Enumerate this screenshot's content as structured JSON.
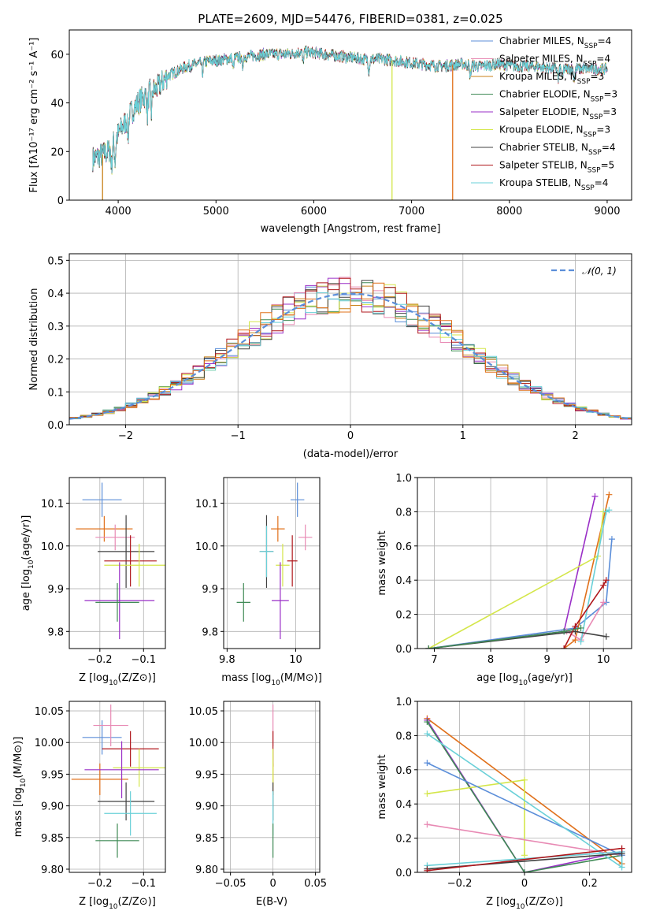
{
  "chart_data": [
    {
      "type": "line",
      "id": "spectrum",
      "title": "PLATE=2609, MJD=54476, FIBERID=0381, z=0.025",
      "xlabel": "wavelength [Angstrom, rest frame]",
      "ylabel": "Flux [fλ10⁻¹⁷ erg cm⁻² s⁻¹ A⁻¹]",
      "xlim": [
        3500,
        9250
      ],
      "ylim": [
        0,
        70
      ],
      "xticks": [
        4000,
        5000,
        6000,
        7000,
        8000,
        9000
      ],
      "yticks": [
        0,
        20,
        40,
        60
      ],
      "grid": false,
      "legend_placement": "top-right",
      "continuum": {
        "x": [
          3740,
          3800,
          3900,
          4000,
          4100,
          4200,
          4300,
          4400,
          4500,
          4700,
          4900,
          5100,
          5300,
          5500,
          5700,
          5900,
          6100,
          6300,
          6500,
          6700,
          6900,
          7100,
          7300,
          7500,
          7700,
          7900,
          8100,
          8300,
          8500,
          8700,
          8900,
          9000
        ],
        "y": [
          17,
          18,
          20,
          27,
          34,
          40,
          44,
          46,
          51,
          55,
          57,
          58,
          59,
          60,
          60,
          61,
          60,
          59,
          58,
          58,
          57,
          56,
          55,
          56,
          55,
          56,
          55,
          55,
          54,
          54,
          54,
          54
        ]
      },
      "series": [
        {
          "name": "Chabrier MILES, N_SSP=4",
          "label_main": "Chabrier MILES, N",
          "label_sub": "SSP",
          "label_tail": "=4",
          "color": "#5b8ed9"
        },
        {
          "name": "Salpeter MILES, N_SSP=4",
          "label_main": "Salpeter MILES, N",
          "label_sub": "SSP",
          "label_tail": "=4",
          "color": "#e88ab4"
        },
        {
          "name": "Kroupa MILES, N_SSP=3",
          "label_main": "Kroupa MILES, N",
          "label_sub": "SSP",
          "label_tail": "=3",
          "color": "#c8821a"
        },
        {
          "name": "Chabrier ELODIE, N_SSP=3",
          "label_main": "Chabrier ELODIE, N",
          "label_sub": "SSP",
          "label_tail": "=3",
          "color": "#3f8a55"
        },
        {
          "name": "Salpeter ELODIE, N_SSP=3",
          "label_main": "Salpeter ELODIE, N",
          "label_sub": "SSP",
          "label_tail": "=3",
          "color": "#9a2fc7"
        },
        {
          "name": "Kroupa ELODIE, N_SSP=3",
          "label_main": "Kroupa ELODIE, N",
          "label_sub": "SSP",
          "label_tail": "=3",
          "color": "#d4e64a"
        },
        {
          "name": "Chabrier STELIB, N_SSP=4",
          "label_main": "Chabrier STELIB, N",
          "label_sub": "SSP",
          "label_tail": "=4",
          "color": "#404040"
        },
        {
          "name": "Salpeter STELIB, N_SSP=5",
          "label_main": "Salpeter STELIB, N",
          "label_sub": "SSP",
          "label_tail": "=5",
          "color": "#b0171c"
        },
        {
          "name": "Kroupa STELIB, N_SSP=4",
          "label_main": "Kroupa STELIB, N",
          "label_sub": "SSP",
          "label_tail": "=4",
          "color": "#6ad0d8"
        }
      ],
      "dropouts": [
        {
          "x": 3840,
          "color": "#c8821a"
        },
        {
          "x": 6800,
          "color": "#d4e64a"
        },
        {
          "x": 7420,
          "color": "#e0701a"
        }
      ]
    },
    {
      "type": "bar",
      "id": "residuals",
      "xlabel": "(data-model)/error",
      "ylabel": "Normed distribution",
      "xlim": [
        -2.5,
        2.5
      ],
      "ylim": [
        0,
        0.52
      ],
      "xticks": [
        -2,
        -1,
        0,
        1,
        2
      ],
      "yticks": [
        0.0,
        0.1,
        0.2,
        0.3,
        0.4,
        0.5
      ],
      "grid": true,
      "bin_width": 0.1,
      "reference": {
        "name": "𝒩(0, 1)",
        "color": "#5b8ed9",
        "style": "dashed",
        "mean": 0,
        "sigma": 1
      },
      "legend_placement": "top-right"
    },
    {
      "type": "scatter",
      "id": "age_vs_Z",
      "xlabel_main": "Z [log",
      "xlabel_sub": "10",
      "xlabel_tail": "(Z/Z⊙)]",
      "ylabel_main": "age  [log",
      "ylabel_sub": "10",
      "ylabel_tail": "(age/yr)]",
      "xlim": [
        -0.27,
        -0.05
      ],
      "ylim": [
        9.76,
        10.16
      ],
      "xticks": [
        -0.2,
        -0.1
      ],
      "yticks": [
        9.8,
        9.9,
        10.0,
        10.1
      ],
      "grid": true,
      "points": [
        {
          "x": -0.195,
          "y": 10.108,
          "xerr": 0.045,
          "yerr": 0.04,
          "color": "#5b8ed9"
        },
        {
          "x": -0.19,
          "y": 10.04,
          "xerr": 0.065,
          "yerr": 0.03,
          "color": "#e0701a"
        },
        {
          "x": -0.165,
          "y": 10.02,
          "xerr": 0.045,
          "yerr": 0.03,
          "color": "#e88ab4"
        },
        {
          "x": -0.14,
          "y": 9.987,
          "xerr": 0.065,
          "yerr": 0.085,
          "color": "#404040"
        },
        {
          "x": -0.13,
          "y": 9.965,
          "xerr": 0.06,
          "yerr": 0.06,
          "color": "#b0171c"
        },
        {
          "x": -0.11,
          "y": 9.955,
          "xerr": 0.08,
          "yerr": 0.05,
          "color": "#d4e64a"
        },
        {
          "x": -0.155,
          "y": 9.872,
          "xerr": 0.08,
          "yerr": 0.09,
          "color": "#9a2fc7"
        },
        {
          "x": -0.16,
          "y": 9.868,
          "xerr": 0.05,
          "yerr": 0.045,
          "color": "#3f8a55"
        }
      ]
    },
    {
      "type": "scatter",
      "id": "age_vs_mass",
      "xlabel_main": "mass [log",
      "xlabel_sub": "10",
      "xlabel_tail": "(M/M⊙)]",
      "xlim": [
        9.79,
        10.07
      ],
      "ylim": [
        9.76,
        10.16
      ],
      "xticks": [
        9.8,
        10.0
      ],
      "yticks": [
        9.8,
        9.9,
        10.0,
        10.1
      ],
      "grid": true,
      "points": [
        {
          "x": 10.005,
          "y": 10.108,
          "xerr": 0.02,
          "yerr": 0.04,
          "color": "#5b8ed9"
        },
        {
          "x": 9.948,
          "y": 10.04,
          "xerr": 0.02,
          "yerr": 0.03,
          "color": "#e0701a"
        },
        {
          "x": 10.028,
          "y": 10.02,
          "xerr": 0.02,
          "yerr": 0.03,
          "color": "#e88ab4"
        },
        {
          "x": 9.915,
          "y": 9.987,
          "xerr": 0.02,
          "yerr": 0.085,
          "color": "#404040"
        },
        {
          "x": 9.99,
          "y": 9.965,
          "xerr": 0.015,
          "yerr": 0.06,
          "color": "#b0171c"
        },
        {
          "x": 9.962,
          "y": 9.955,
          "xerr": 0.02,
          "yerr": 0.05,
          "color": "#d4e64a"
        },
        {
          "x": 9.915,
          "y": 9.987,
          "xerr": 0.02,
          "yerr": 0.06,
          "color": "#6ad0d8"
        },
        {
          "x": 9.955,
          "y": 9.872,
          "xerr": 0.025,
          "yerr": 0.09,
          "color": "#9a2fc7"
        },
        {
          "x": 9.848,
          "y": 9.868,
          "xerr": 0.02,
          "yerr": 0.045,
          "color": "#3f8a55"
        }
      ]
    },
    {
      "type": "line",
      "id": "weight_vs_age",
      "xlabel_main": "age  [log",
      "xlabel_sub": "10",
      "xlabel_tail": "(age/yr)]",
      "ylabel": "mass weight",
      "xlim": [
        6.7,
        10.5
      ],
      "ylim": [
        0,
        1.0
      ],
      "xticks": [
        7,
        8,
        9,
        10
      ],
      "yticks": [
        0.0,
        0.2,
        0.4,
        0.6,
        0.8,
        1.0
      ],
      "grid": true,
      "series": [
        {
          "color": "#5b8ed9",
          "x": [
            6.9,
            9.5,
            10.05,
            10.15
          ],
          "y": [
            0.0,
            0.12,
            0.27,
            0.64
          ]
        },
        {
          "color": "#e0701a",
          "x": [
            9.3,
            9.5,
            10.1
          ],
          "y": [
            0.0,
            0.05,
            0.9
          ]
        },
        {
          "color": "#e88ab4",
          "x": [
            9.35,
            9.6,
            10.0
          ],
          "y": [
            0.1,
            0.05,
            0.27
          ]
        },
        {
          "color": "#9a2fc7",
          "x": [
            6.9,
            9.3,
            9.85
          ],
          "y": [
            0.0,
            0.1,
            0.89
          ]
        },
        {
          "color": "#d4e64a",
          "x": [
            6.9,
            9.9,
            10.0
          ],
          "y": [
            0.0,
            0.54,
            0.8
          ]
        },
        {
          "color": "#6ad0d8",
          "x": [
            9.6,
            10.05,
            10.1
          ],
          "y": [
            0.04,
            0.8,
            0.81
          ]
        },
        {
          "color": "#404040",
          "x": [
            6.9,
            9.5,
            10.05
          ],
          "y": [
            0.0,
            0.1,
            0.07
          ]
        },
        {
          "color": "#b0171c",
          "x": [
            9.3,
            9.5,
            10.0,
            10.05
          ],
          "y": [
            0.0,
            0.13,
            0.37,
            0.4
          ]
        },
        {
          "color": "#3f8a55",
          "x": [
            6.9,
            9.3,
            9.6
          ],
          "y": [
            0.0,
            0.1,
            0.12
          ]
        }
      ]
    },
    {
      "type": "scatter",
      "id": "mass_vs_Z",
      "xlabel_main": "Z [log",
      "xlabel_sub": "10",
      "xlabel_tail": "(Z/Z⊙)]",
      "ylabel_main": "mass [log",
      "ylabel_sub": "10",
      "ylabel_tail": "(M/M⊙)]",
      "xlim": [
        -0.27,
        -0.05
      ],
      "ylim": [
        9.795,
        10.065
      ],
      "xticks": [
        -0.2,
        -0.1
      ],
      "yticks": [
        9.8,
        9.85,
        9.9,
        9.95,
        10.0,
        10.05
      ],
      "grid": true,
      "points": [
        {
          "x": -0.195,
          "y": 10.008,
          "xerr": 0.045,
          "yerr": 0.027,
          "color": "#5b8ed9"
        },
        {
          "x": -0.175,
          "y": 10.027,
          "xerr": 0.04,
          "yerr": 0.033,
          "color": "#e88ab4"
        },
        {
          "x": -0.13,
          "y": 9.99,
          "xerr": 0.065,
          "yerr": 0.028,
          "color": "#b0171c"
        },
        {
          "x": -0.2,
          "y": 9.942,
          "xerr": 0.065,
          "yerr": 0.025,
          "color": "#e0701a"
        },
        {
          "x": -0.11,
          "y": 9.96,
          "xerr": 0.06,
          "yerr": 0.03,
          "color": "#d4e64a"
        },
        {
          "x": -0.15,
          "y": 9.957,
          "xerr": 0.085,
          "yerr": 0.045,
          "color": "#9a2fc7"
        },
        {
          "x": -0.14,
          "y": 9.907,
          "xerr": 0.065,
          "yerr": 0.03,
          "color": "#404040"
        },
        {
          "x": -0.13,
          "y": 9.888,
          "xerr": 0.06,
          "yerr": 0.035,
          "color": "#6ad0d8"
        },
        {
          "x": -0.16,
          "y": 9.845,
          "xerr": 0.05,
          "yerr": 0.027,
          "color": "#3f8a55"
        }
      ]
    },
    {
      "type": "scatter",
      "id": "mass_vs_ebv",
      "xlabel": "E(B-V)",
      "xlim": [
        -0.058,
        0.055
      ],
      "ylim": [
        9.795,
        10.065
      ],
      "xticks": [
        -0.05,
        0.0,
        0.05
      ],
      "yticks": [
        9.8,
        9.85,
        9.9,
        9.95,
        10.0,
        10.05
      ],
      "grid": true,
      "points": [
        {
          "x": 0.0,
          "y": 10.027,
          "yerr": 0.033,
          "color": "#e88ab4"
        },
        {
          "x": 0.0,
          "y": 9.99,
          "yerr": 0.028,
          "color": "#b0171c"
        },
        {
          "x": 0.0,
          "y": 9.942,
          "yerr": 0.025,
          "color": "#e0701a"
        },
        {
          "x": 0.0,
          "y": 9.96,
          "yerr": 0.03,
          "color": "#d4e64a"
        },
        {
          "x": 0.0,
          "y": 9.907,
          "yerr": 0.03,
          "color": "#404040"
        },
        {
          "x": 0.0,
          "y": 9.888,
          "yerr": 0.035,
          "color": "#6ad0d8"
        },
        {
          "x": 0.0,
          "y": 9.845,
          "yerr": 0.027,
          "color": "#3f8a55"
        }
      ]
    },
    {
      "type": "line",
      "id": "weight_vs_Z",
      "xlabel_main": "Z [log",
      "xlabel_sub": "10",
      "xlabel_tail": "(Z/Z⊙)]",
      "ylabel": "mass weight",
      "xlim": [
        -0.33,
        0.33
      ],
      "ylim": [
        0,
        1.0
      ],
      "xticks": [
        -0.2,
        0.0,
        0.2
      ],
      "yticks": [
        0.0,
        0.2,
        0.4,
        0.6,
        0.8,
        1.0
      ],
      "grid": true,
      "series": [
        {
          "color": "#e0701a",
          "x": [
            -0.3,
            0.3
          ],
          "y": [
            0.9,
            0.05
          ]
        },
        {
          "color": "#9a2fc7",
          "x": [
            -0.3,
            0.0,
            0.3
          ],
          "y": [
            0.89,
            0.0,
            0.12
          ]
        },
        {
          "color": "#3f8a55",
          "x": [
            -0.3,
            0.0,
            0.3
          ],
          "y": [
            0.88,
            0.0,
            0.1
          ]
        },
        {
          "color": "#d4e64a",
          "x": [
            -0.3,
            0.0,
            0.0
          ],
          "y": [
            0.46,
            0.54,
            0.1
          ]
        },
        {
          "color": "#e88ab4",
          "x": [
            -0.3,
            0.3
          ],
          "y": [
            0.28,
            0.1
          ]
        },
        {
          "color": "#5b8ed9",
          "x": [
            -0.3,
            0.3
          ],
          "y": [
            0.64,
            0.1
          ]
        },
        {
          "color": "#6ad0d8",
          "x": [
            -0.3,
            0.3,
            0.3,
            -0.3
          ],
          "y": [
            0.04,
            0.12,
            0.03,
            0.81
          ]
        },
        {
          "color": "#404040",
          "x": [
            -0.3,
            0.3
          ],
          "y": [
            0.02,
            0.11
          ]
        },
        {
          "color": "#b0171c",
          "x": [
            -0.3,
            0.3
          ],
          "y": [
            0.01,
            0.14
          ]
        }
      ]
    }
  ]
}
